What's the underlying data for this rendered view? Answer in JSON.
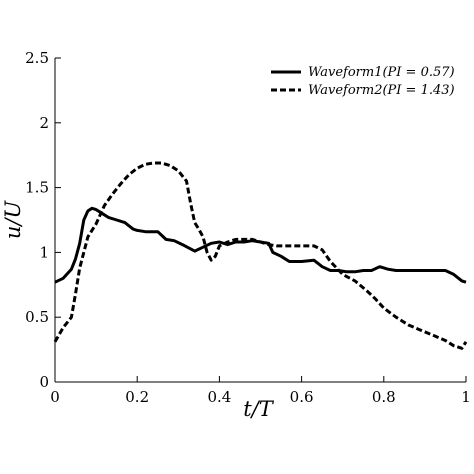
{
  "chart_data": {
    "type": "line",
    "xlabel": "t/T",
    "ylabel": "u/U",
    "xlim": [
      0,
      1
    ],
    "ylim": [
      0,
      2.5
    ],
    "xticks": [
      "0",
      "0.2",
      "0.4",
      "0.6",
      "0.8",
      "1"
    ],
    "yticks": [
      "0",
      "0.5",
      "1",
      "1.5",
      "2",
      "2.5"
    ],
    "grid": false,
    "legend_position": "top-right",
    "series": [
      {
        "name": "Waveform1(PI = 0.57)",
        "style": "solid",
        "color": "#000000",
        "x": [
          0,
          0.02,
          0.04,
          0.05,
          0.06,
          0.07,
          0.08,
          0.09,
          0.1,
          0.11,
          0.12,
          0.13,
          0.15,
          0.17,
          0.19,
          0.2,
          0.22,
          0.25,
          0.27,
          0.29,
          0.31,
          0.34,
          0.36,
          0.38,
          0.4,
          0.42,
          0.44,
          0.46,
          0.48,
          0.5,
          0.52,
          0.53,
          0.55,
          0.57,
          0.6,
          0.63,
          0.65,
          0.67,
          0.69,
          0.71,
          0.73,
          0.75,
          0.77,
          0.79,
          0.81,
          0.83,
          0.85,
          0.87,
          0.89,
          0.91,
          0.93,
          0.95,
          0.97,
          0.99,
          1.0
        ],
        "y": [
          0.77,
          0.8,
          0.87,
          0.95,
          1.07,
          1.25,
          1.32,
          1.34,
          1.33,
          1.31,
          1.29,
          1.27,
          1.25,
          1.23,
          1.18,
          1.17,
          1.16,
          1.16,
          1.1,
          1.09,
          1.06,
          1.01,
          1.04,
          1.07,
          1.08,
          1.06,
          1.08,
          1.08,
          1.09,
          1.08,
          1.07,
          1.0,
          0.97,
          0.93,
          0.93,
          0.94,
          0.89,
          0.86,
          0.86,
          0.85,
          0.85,
          0.86,
          0.86,
          0.89,
          0.87,
          0.86,
          0.86,
          0.86,
          0.86,
          0.86,
          0.86,
          0.86,
          0.83,
          0.78,
          0.77
        ]
      },
      {
        "name": "Waveform2(PI = 1.43)",
        "style": "dashed",
        "color": "#000000",
        "x": [
          0,
          0.02,
          0.04,
          0.05,
          0.06,
          0.07,
          0.08,
          0.1,
          0.12,
          0.14,
          0.16,
          0.18,
          0.2,
          0.22,
          0.24,
          0.26,
          0.28,
          0.3,
          0.32,
          0.33,
          0.34,
          0.35,
          0.36,
          0.37,
          0.38,
          0.39,
          0.4,
          0.42,
          0.44,
          0.46,
          0.48,
          0.5,
          0.52,
          0.54,
          0.56,
          0.6,
          0.63,
          0.65,
          0.67,
          0.7,
          0.73,
          0.76,
          0.78,
          0.8,
          0.83,
          0.86,
          0.89,
          0.92,
          0.95,
          0.97,
          0.99,
          1.0
        ],
        "y": [
          0.31,
          0.42,
          0.5,
          0.68,
          0.88,
          1.0,
          1.12,
          1.22,
          1.36,
          1.45,
          1.53,
          1.6,
          1.65,
          1.68,
          1.69,
          1.69,
          1.67,
          1.63,
          1.55,
          1.38,
          1.23,
          1.18,
          1.12,
          1.0,
          0.94,
          0.97,
          1.05,
          1.08,
          1.1,
          1.1,
          1.1,
          1.08,
          1.06,
          1.05,
          1.05,
          1.05,
          1.05,
          1.02,
          0.93,
          0.83,
          0.78,
          0.7,
          0.64,
          0.57,
          0.5,
          0.44,
          0.4,
          0.36,
          0.32,
          0.28,
          0.26,
          0.31
        ]
      }
    ]
  }
}
